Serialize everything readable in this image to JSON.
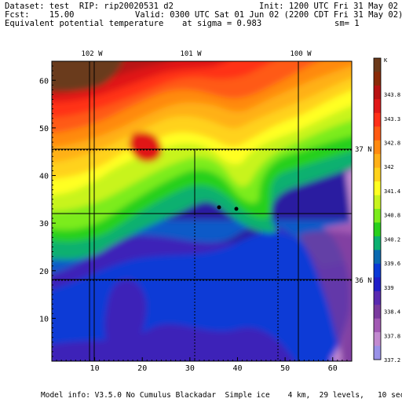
{
  "header": {
    "dataset_line": "Dataset: test  RIP: rip20020531 d2",
    "init_line": "Init: 1200 UTC Fri 31 May 02",
    "fcst_line": "Fcst:    15.00",
    "valid_line": "Valid: 0300 UTC Sat 01 Jun 02 (2200 CDT Fri 31 May 02)",
    "field_line": "Equivalent potential temperature",
    "sigma_line": "at sigma = 0.983",
    "sm_line": "sm= 1"
  },
  "map": {
    "lon_labels": [
      "102 W",
      "101 W",
      "100 W"
    ],
    "lat_labels": [
      "37 N",
      "36 N"
    ],
    "x_ticks": [
      "10",
      "20",
      "30",
      "40",
      "50",
      "60"
    ],
    "y_ticks": [
      "10",
      "20",
      "30",
      "40",
      "50",
      "60"
    ],
    "xlim": [
      1,
      64
    ],
    "ylim": [
      1,
      64
    ]
  },
  "colorbar": {
    "unit": "K",
    "labels": [
      "343.8",
      "343.3",
      "342.8",
      "342",
      "341.4",
      "340.8",
      "340.2",
      "339.6",
      "339",
      "338.4",
      "337.8",
      "337.2"
    ],
    "colors": [
      "#6b3a1a",
      "#8a2a08",
      "#b81212",
      "#e01818",
      "#ff3018",
      "#ff5a12",
      "#ff8a10",
      "#ffb018",
      "#ffd21c",
      "#ffff22",
      "#c8f41e",
      "#7cec1c",
      "#28d01c",
      "#0cb070",
      "#0a6ab0",
      "#0a3ad6",
      "#1e1ec8",
      "#5a2ab0",
      "#7a3a9e",
      "#a25ab4",
      "#c28ad0",
      "#9a92e8"
    ]
  },
  "footer": {
    "model_info": "Model info: V3.5.0 No Cumulus Blackadar  Simple ice    4 km,  29 levels,   10 sec"
  }
}
